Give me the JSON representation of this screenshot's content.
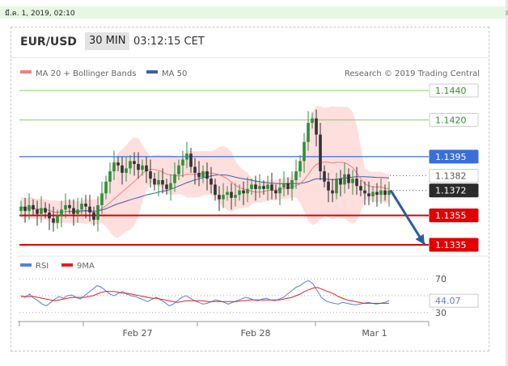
{
  "top_date": "มี.ค. 1, 2019, 02:10",
  "header": {
    "pair": "EUR/USD",
    "timeframe": "30 MIN",
    "time": "03:12:15 CET"
  },
  "legend": {
    "ma20": "MA 20 + Bollinger Bands",
    "ma50": "MA 50",
    "copyright": "Research © 2019 Trading Central"
  },
  "colors": {
    "ma20": "#f08080",
    "ma50": "#3d5fa8",
    "band": "#ffd8d8",
    "up": "#2f8f3a",
    "down": "#333333",
    "resistance": "#3a6fd8",
    "green_level": "#8cc86a",
    "support": "#e00000",
    "arrow": "#2a5aa8",
    "rsi": "#5a7fe0",
    "rsi_ma": "#e02020"
  },
  "chart_data": [
    {
      "type": "candlestick",
      "ylim": [
        1.1325,
        1.145
      ],
      "x_ticks": [
        "Feb 27",
        "Feb 28",
        "Mar 1"
      ],
      "levels": [
        {
          "label": "1.1440",
          "value": 1.144,
          "kind": "green"
        },
        {
          "label": "1.1420",
          "value": 1.142,
          "kind": "green"
        },
        {
          "label": "1.1395",
          "value": 1.1395,
          "kind": "resistance"
        },
        {
          "label": "1.1382",
          "value": 1.1382,
          "kind": "dotted"
        },
        {
          "label": "1.1372",
          "value": 1.1372,
          "kind": "current"
        },
        {
          "label": "1.1355",
          "value": 1.1355,
          "kind": "support"
        },
        {
          "label": "1.1335",
          "value": 1.1335,
          "kind": "support"
        }
      ],
      "closes": [
        1.1361,
        1.1358,
        1.1362,
        1.1359,
        1.1356,
        1.136,
        1.1357,
        1.1353,
        1.135,
        1.1355,
        1.1359,
        1.1362,
        1.136,
        1.1356,
        1.1359,
        1.1363,
        1.1361,
        1.1357,
        1.1352,
        1.1362,
        1.137,
        1.1378,
        1.1385,
        1.1391,
        1.1389,
        1.1384,
        1.1387,
        1.1392,
        1.139,
        1.1386,
        1.1389,
        1.1385,
        1.138,
        1.1376,
        1.1379,
        1.1376,
        1.1373,
        1.1377,
        1.1383,
        1.1389,
        1.1393,
        1.1397,
        1.1388,
        1.1384,
        1.1381,
        1.1385,
        1.138,
        1.1376,
        1.1369,
        1.1366,
        1.1369,
        1.1371,
        1.1367,
        1.1369,
        1.1372,
        1.137,
        1.1373,
        1.1376,
        1.1373,
        1.1375,
        1.1373,
        1.1376,
        1.1372,
        1.137,
        1.1374,
        1.1377,
        1.1373,
        1.1379,
        1.1385,
        1.1392,
        1.1405,
        1.1418,
        1.1421,
        1.141,
        1.1385,
        1.1378,
        1.1372,
        1.137,
        1.138,
        1.1376,
        1.1383,
        1.1377,
        1.138,
        1.1375,
        1.1372,
        1.137,
        1.1368,
        1.1371,
        1.1369,
        1.1372,
        1.1369,
        1.1372
      ]
    },
    {
      "type": "line",
      "title": "RSI",
      "series": [
        {
          "name": "RSI"
        },
        {
          "name": "9MA"
        }
      ],
      "ylim": [
        25,
        75
      ],
      "y_ticks": [
        "70",
        "30"
      ],
      "current_label": "44.07",
      "rsi": [
        50,
        48,
        52,
        47,
        44,
        40,
        38,
        42,
        46,
        49,
        47,
        50,
        51,
        48,
        46,
        50,
        54,
        58,
        62,
        60,
        56,
        52,
        50,
        53,
        55,
        52,
        50,
        49,
        47,
        45,
        43,
        46,
        48,
        45,
        42,
        38,
        40,
        44,
        48,
        50,
        47,
        44,
        42,
        40,
        41,
        43,
        45,
        44,
        42,
        40,
        42,
        44,
        46,
        48,
        47,
        45,
        44,
        46,
        47,
        45,
        44,
        46,
        48,
        52,
        56,
        60,
        62,
        66,
        68,
        64,
        56,
        48,
        44,
        42,
        41,
        40,
        42,
        41,
        40,
        39,
        40,
        41,
        42,
        41,
        40,
        41,
        42,
        44
      ],
      "rsi_ma": [
        49,
        49,
        49,
        49,
        48,
        47,
        46,
        45,
        44,
        45,
        46,
        47,
        48,
        48,
        48,
        48,
        49,
        50,
        52,
        54,
        55,
        55,
        55,
        54,
        53,
        53,
        52,
        51,
        50,
        49,
        48,
        47,
        47,
        46,
        45,
        44,
        43,
        42,
        43,
        44,
        44,
        44,
        44,
        44,
        43,
        43,
        43,
        43,
        43,
        43,
        43,
        43,
        44,
        44,
        45,
        45,
        45,
        45,
        45,
        45,
        45,
        45,
        46,
        47,
        48,
        50,
        52,
        55,
        57,
        59,
        60,
        58,
        56,
        54,
        52,
        49,
        47,
        45,
        44,
        43,
        42,
        41,
        41,
        41,
        41,
        41,
        41,
        41
      ]
    }
  ]
}
